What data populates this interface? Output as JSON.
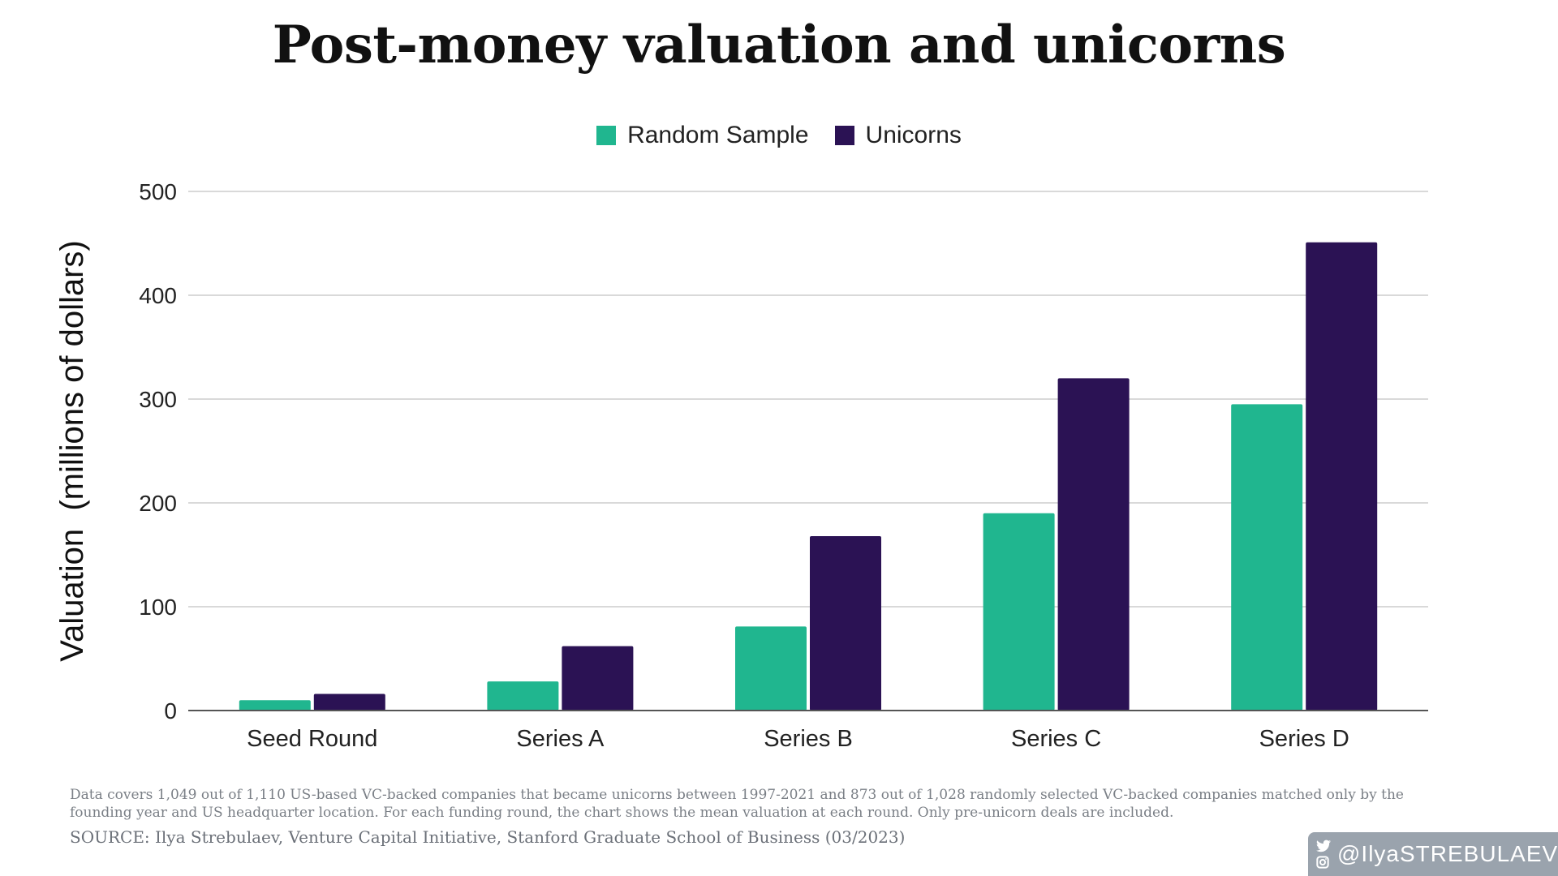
{
  "title": "Post-money valuation and unicorns",
  "legend": {
    "random_label": "Random Sample",
    "unicorns_label": "Unicorns"
  },
  "footnote": "Data covers 1,049 out of 1,110 US-based VC-backed companies that became unicorns between 1997-2021 and 873 out of 1,028 randomly selected VC-backed companies matched only by the founding year and US headquarter location. For each funding round, the chart shows the mean valuation at each round. Only pre-unicorn deals are included.",
  "source": "SOURCE: Ilya Strebulaev, Venture Capital Initiative, Stanford Graduate School of Business (03/2023)",
  "handle": "@IlyaSTREBULAEV",
  "icons": [
    "twitter-icon",
    "instagram-icon"
  ],
  "colors": {
    "random_sample": "#20b68f",
    "unicorns": "#2b1254",
    "gridline": "#d9d9d9",
    "axis": "#555555"
  },
  "chart_data": {
    "type": "bar",
    "ylabel": "Valuation  (millions of dollars)",
    "xlabel": "",
    "ylim": [
      0,
      500
    ],
    "yticks": [
      0,
      100,
      200,
      300,
      400,
      500
    ],
    "grid": true,
    "legend_position": "top-center",
    "categories": [
      "Seed Round",
      "Series A",
      "Series B",
      "Series C",
      "Series D"
    ],
    "series": [
      {
        "name": "Random Sample",
        "values": [
          10,
          28,
          81,
          190,
          295
        ]
      },
      {
        "name": "Unicorns",
        "values": [
          16,
          62,
          168,
          320,
          451
        ]
      }
    ]
  }
}
